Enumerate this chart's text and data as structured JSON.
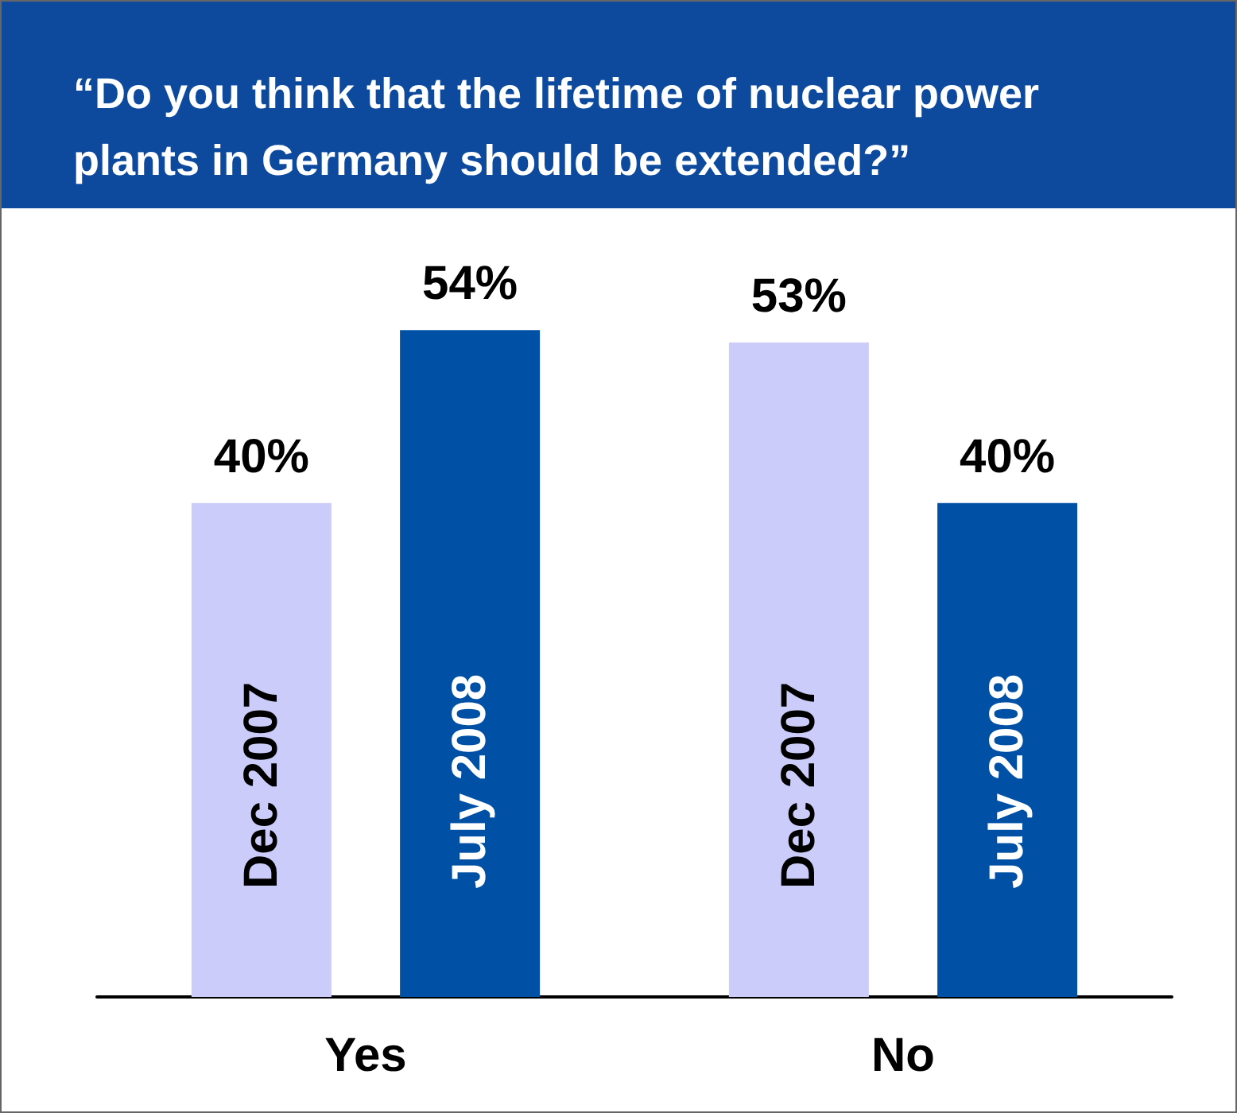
{
  "chart_data": {
    "type": "bar",
    "title": "“Do you think that the lifetime of nuclear power plants in Germany should be extended?”",
    "categories": [
      "Yes",
      "No"
    ],
    "series": [
      {
        "name": "Dec 2007",
        "color": "#ccccfa",
        "values": [
          40,
          53
        ],
        "value_labels": [
          "40%",
          "53%"
        ]
      },
      {
        "name": "July 2008",
        "color": "#0050a5",
        "values": [
          54,
          40
        ],
        "value_labels": [
          "54%",
          "40%"
        ]
      }
    ],
    "tick_labels": "x",
    "grid": false,
    "legend": false
  }
}
